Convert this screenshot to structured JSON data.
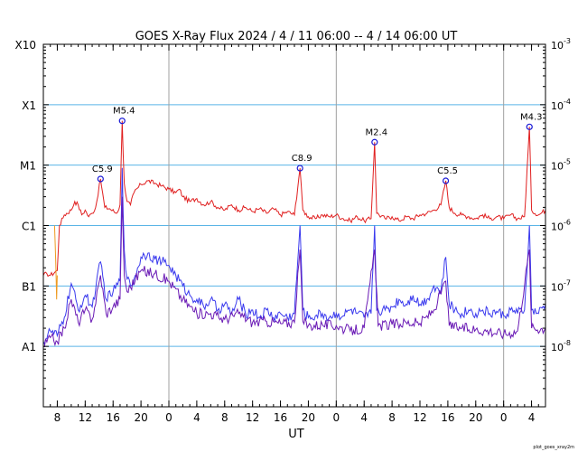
{
  "chart_data": {
    "type": "line",
    "title": "GOES X-Ray Flux   2024 /  4 / 11   06:00 --  4 / 14   06:00   UT",
    "xlabel": "UT",
    "footer": "plot_goes_xray2m",
    "y_scale": "log",
    "ylim": [
      1e-09,
      0.001
    ],
    "x_range_hours": [
      0,
      72
    ],
    "x_ticks": [
      {
        "h": 2,
        "label": "8"
      },
      {
        "h": 6,
        "label": "12"
      },
      {
        "h": 10,
        "label": "16"
      },
      {
        "h": 14,
        "label": "20"
      },
      {
        "h": 18,
        "label": "0"
      },
      {
        "h": 22,
        "label": "4"
      },
      {
        "h": 26,
        "label": "8"
      },
      {
        "h": 30,
        "label": "12"
      },
      {
        "h": 34,
        "label": "16"
      },
      {
        "h": 38,
        "label": "20"
      },
      {
        "h": 42,
        "label": "0"
      },
      {
        "h": 46,
        "label": "4"
      },
      {
        "h": 50,
        "label": "8"
      },
      {
        "h": 54,
        "label": "12"
      },
      {
        "h": 58,
        "label": "16"
      },
      {
        "h": 62,
        "label": "20"
      },
      {
        "h": 66,
        "label": "0"
      },
      {
        "h": 70,
        "label": "4"
      }
    ],
    "day_boundaries_h": [
      18,
      42,
      66
    ],
    "left_axis_labels": [
      {
        "flux": 0.001,
        "label": "X10"
      },
      {
        "flux": 0.0001,
        "label": "X1"
      },
      {
        "flux": 1e-05,
        "label": "M1"
      },
      {
        "flux": 1e-06,
        "label": "C1"
      },
      {
        "flux": 1e-07,
        "label": "B1"
      },
      {
        "flux": 1e-08,
        "label": "A1"
      }
    ],
    "right_axis_labels": [
      {
        "flux": 0.001,
        "base": "10",
        "exp": "-3"
      },
      {
        "flux": 0.0001,
        "base": "10",
        "exp": "-4"
      },
      {
        "flux": 1e-05,
        "base": "10",
        "exp": "-5"
      },
      {
        "flux": 1e-06,
        "base": "10",
        "exp": "-6"
      },
      {
        "flux": 1e-07,
        "base": "10",
        "exp": "-7"
      },
      {
        "flux": 1e-08,
        "base": "10",
        "exp": "-8"
      }
    ],
    "flares": [
      {
        "label": "C5.9",
        "h": 8.2,
        "flux": 5.9e-06
      },
      {
        "label": "M5.4",
        "h": 11.3,
        "flux": 5.4e-05
      },
      {
        "label": "C8.9",
        "h": 36.8,
        "flux": 8.9e-06
      },
      {
        "label": "M2.4",
        "h": 47.5,
        "flux": 2.4e-05
      },
      {
        "label": "C5.5",
        "h": 57.7,
        "flux": 5.5e-06
      },
      {
        "label": "M4.3",
        "h": 69.7,
        "flux": 4.3e-05
      }
    ],
    "series": [
      {
        "color": "#e02020",
        "points": [
          [
            0.0,
            1.5e-07
          ],
          [
            0.5,
            1.6e-07
          ],
          [
            1.0,
            1.5e-07
          ],
          [
            2.0,
            1.8e-07
          ],
          [
            2.3,
            1e-06
          ],
          [
            3.0,
            1.5e-06
          ],
          [
            4.0,
            1.8e-06
          ],
          [
            4.5,
            2.5e-06
          ],
          [
            5.0,
            2.2e-06
          ],
          [
            5.5,
            1.5e-06
          ],
          [
            6.0,
            1.8e-06
          ],
          [
            6.5,
            1.4e-06
          ],
          [
            7.0,
            1.6e-06
          ],
          [
            7.5,
            2e-06
          ],
          [
            8.2,
            5.9e-06
          ],
          [
            8.8,
            2e-06
          ],
          [
            9.5,
            1.9e-06
          ],
          [
            10.5,
            1.6e-06
          ],
          [
            11.0,
            2.2e-06
          ],
          [
            11.3,
            5.4e-05
          ],
          [
            11.6,
            5e-06
          ],
          [
            12.0,
            2.5e-06
          ],
          [
            12.5,
            2.2e-06
          ],
          [
            13.0,
            3.5e-06
          ],
          [
            14.0,
            4.8e-06
          ],
          [
            15.0,
            5.5e-06
          ],
          [
            16.0,
            5e-06
          ],
          [
            17.0,
            4.5e-06
          ],
          [
            18.0,
            4e-06
          ],
          [
            19.0,
            3.5e-06
          ],
          [
            19.5,
            4e-06
          ],
          [
            20.0,
            3e-06
          ],
          [
            21.0,
            2.5e-06
          ],
          [
            22.0,
            2.8e-06
          ],
          [
            23.0,
            2.2e-06
          ],
          [
            24.0,
            2.5e-06
          ],
          [
            25.0,
            2e-06
          ],
          [
            26.0,
            1.8e-06
          ],
          [
            27.0,
            2.2e-06
          ],
          [
            28.0,
            1.8e-06
          ],
          [
            29.0,
            2e-06
          ],
          [
            30.0,
            1.7e-06
          ],
          [
            31.0,
            1.9e-06
          ],
          [
            32.0,
            1.6e-06
          ],
          [
            33.0,
            1.9e-06
          ],
          [
            34.0,
            1.5e-06
          ],
          [
            35.0,
            1.7e-06
          ],
          [
            36.0,
            1.5e-06
          ],
          [
            36.8,
            8.9e-06
          ],
          [
            37.2,
            1.8e-06
          ],
          [
            38.0,
            1.4e-06
          ],
          [
            39.0,
            1.3e-06
          ],
          [
            40.0,
            1.5e-06
          ],
          [
            41.0,
            1.4e-06
          ],
          [
            42.0,
            1.5e-06
          ],
          [
            43.0,
            1.3e-06
          ],
          [
            44.0,
            1.2e-06
          ],
          [
            45.0,
            1.4e-06
          ],
          [
            46.0,
            1.2e-06
          ],
          [
            47.0,
            1.3e-06
          ],
          [
            47.5,
            2.4e-05
          ],
          [
            47.8,
            1.6e-06
          ],
          [
            49.0,
            1.3e-06
          ],
          [
            50.0,
            1.4e-06
          ],
          [
            51.0,
            1.2e-06
          ],
          [
            52.0,
            1.4e-06
          ],
          [
            53.0,
            1.3e-06
          ],
          [
            54.0,
            1.5e-06
          ],
          [
            55.0,
            1.6e-06
          ],
          [
            56.0,
            1.8e-06
          ],
          [
            57.0,
            2.2e-06
          ],
          [
            57.7,
            5.5e-06
          ],
          [
            58.2,
            2e-06
          ],
          [
            59.0,
            1.6e-06
          ],
          [
            60.0,
            1.5e-06
          ],
          [
            61.0,
            1.4e-06
          ],
          [
            62.0,
            1.3e-06
          ],
          [
            63.0,
            1.5e-06
          ],
          [
            64.0,
            1.3e-06
          ],
          [
            65.0,
            1.4e-06
          ],
          [
            66.0,
            1.3e-06
          ],
          [
            67.0,
            1.5e-06
          ],
          [
            68.0,
            1.3e-06
          ],
          [
            69.0,
            1.4e-06
          ],
          [
            69.7,
            4.3e-05
          ],
          [
            70.0,
            1.8e-06
          ],
          [
            71.0,
            1.5e-06
          ],
          [
            72.0,
            1.8e-06
          ]
        ]
      },
      {
        "color": "#3a3aee",
        "points": [
          [
            0.0,
            1.2e-08
          ],
          [
            1.0,
            1.8e-08
          ],
          [
            2.0,
            1.5e-08
          ],
          [
            3.0,
            3e-08
          ],
          [
            4.0,
            1.1e-07
          ],
          [
            5.0,
            4e-08
          ],
          [
            6.0,
            7e-08
          ],
          [
            7.0,
            4.5e-08
          ],
          [
            8.2,
            2.5e-07
          ],
          [
            9.0,
            6e-08
          ],
          [
            10.0,
            8e-08
          ],
          [
            11.0,
            1.2e-07
          ],
          [
            11.3,
            9e-06
          ],
          [
            11.6,
            4e-07
          ],
          [
            12.0,
            1.3e-07
          ],
          [
            12.5,
            1e-07
          ],
          [
            13.0,
            1.3e-07
          ],
          [
            14.0,
            3e-07
          ],
          [
            15.0,
            3.5e-07
          ],
          [
            16.0,
            2.8e-07
          ],
          [
            17.0,
            2.5e-07
          ],
          [
            18.0,
            2.2e-07
          ],
          [
            19.0,
            1.5e-07
          ],
          [
            20.0,
            1e-07
          ],
          [
            21.0,
            7e-08
          ],
          [
            22.0,
            6e-08
          ],
          [
            23.0,
            4.5e-08
          ],
          [
            24.0,
            6e-08
          ],
          [
            25.0,
            4e-08
          ],
          [
            26.0,
            5e-08
          ],
          [
            27.0,
            3.5e-08
          ],
          [
            28.0,
            6e-08
          ],
          [
            29.0,
            3.5e-08
          ],
          [
            30.0,
            4e-08
          ],
          [
            31.0,
            3e-08
          ],
          [
            32.0,
            4e-08
          ],
          [
            33.0,
            3e-08
          ],
          [
            34.0,
            3.5e-08
          ],
          [
            35.0,
            3e-08
          ],
          [
            36.0,
            3.5e-08
          ],
          [
            36.8,
            1e-06
          ],
          [
            37.2,
            4e-08
          ],
          [
            38.0,
            3e-08
          ],
          [
            39.0,
            3.2e-08
          ],
          [
            40.0,
            3.5e-08
          ],
          [
            41.0,
            3e-08
          ],
          [
            42.0,
            3.5e-08
          ],
          [
            43.0,
            3.2e-08
          ],
          [
            44.0,
            4e-08
          ],
          [
            45.0,
            3.5e-08
          ],
          [
            46.0,
            3e-08
          ],
          [
            47.0,
            3.5e-08
          ],
          [
            47.5,
            1e-06
          ],
          [
            47.8,
            4e-08
          ],
          [
            49.0,
            4e-08
          ],
          [
            50.0,
            4.5e-08
          ],
          [
            51.0,
            6e-08
          ],
          [
            52.0,
            5e-08
          ],
          [
            53.0,
            7e-08
          ],
          [
            54.0,
            5e-08
          ],
          [
            55.0,
            6e-08
          ],
          [
            56.0,
            1e-07
          ],
          [
            57.0,
            8e-08
          ],
          [
            57.7,
            3e-07
          ],
          [
            58.2,
            5e-08
          ],
          [
            59.0,
            4e-08
          ],
          [
            60.0,
            3.5e-08
          ],
          [
            61.0,
            4e-08
          ],
          [
            62.0,
            3.5e-08
          ],
          [
            63.0,
            4e-08
          ],
          [
            64.0,
            3.5e-08
          ],
          [
            65.0,
            3.8e-08
          ],
          [
            66.0,
            3.2e-08
          ],
          [
            67.0,
            4e-08
          ],
          [
            68.0,
            3.5e-08
          ],
          [
            69.0,
            4e-08
          ],
          [
            69.7,
            1e-06
          ],
          [
            70.0,
            4e-08
          ],
          [
            71.0,
            3.5e-08
          ],
          [
            72.0,
            5e-08
          ]
        ]
      },
      {
        "color": "#6a1ab5",
        "points": [
          [
            0.0,
            1e-08
          ],
          [
            1.0,
            1.4e-08
          ],
          [
            2.0,
            1.2e-08
          ],
          [
            3.0,
            2e-08
          ],
          [
            4.0,
            6e-08
          ],
          [
            5.0,
            2.5e-08
          ],
          [
            6.0,
            4e-08
          ],
          [
            7.0,
            2.8e-08
          ],
          [
            8.2,
            1.5e-07
          ],
          [
            9.0,
            3.5e-08
          ],
          [
            10.0,
            4.5e-08
          ],
          [
            11.0,
            6e-08
          ],
          [
            11.3,
            3e-06
          ],
          [
            11.6,
            1.5e-07
          ],
          [
            12.0,
            8e-08
          ],
          [
            14.0,
            1.8e-07
          ],
          [
            16.0,
            1.6e-07
          ],
          [
            18.0,
            1.2e-07
          ],
          [
            20.0,
            6e-08
          ],
          [
            22.0,
            3.5e-08
          ],
          [
            24.0,
            3.5e-08
          ],
          [
            26.0,
            2.8e-08
          ],
          [
            28.0,
            3.5e-08
          ],
          [
            30.0,
            2.5e-08
          ],
          [
            32.0,
            2.6e-08
          ],
          [
            34.0,
            2.4e-08
          ],
          [
            36.0,
            2.5e-08
          ],
          [
            36.8,
            4e-07
          ],
          [
            37.2,
            2.6e-08
          ],
          [
            38.0,
            2.2e-08
          ],
          [
            40.0,
            2.3e-08
          ],
          [
            42.0,
            2.2e-08
          ],
          [
            44.0,
            1.8e-08
          ],
          [
            46.0,
            2e-08
          ],
          [
            47.5,
            4e-07
          ],
          [
            48.0,
            2.2e-08
          ],
          [
            50.0,
            2.3e-08
          ],
          [
            52.0,
            2.5e-08
          ],
          [
            54.0,
            2.4e-08
          ],
          [
            56.0,
            4e-08
          ],
          [
            57.7,
            1.2e-07
          ],
          [
            58.2,
            2.2e-08
          ],
          [
            60.0,
            2e-08
          ],
          [
            62.0,
            1.9e-08
          ],
          [
            64.0,
            1.8e-08
          ],
          [
            66.0,
            1.6e-08
          ],
          [
            68.0,
            1.8e-08
          ],
          [
            69.7,
            4e-07
          ],
          [
            70.0,
            2e-08
          ],
          [
            72.0,
            2e-08
          ]
        ]
      },
      {
        "color": "#ee9a20",
        "points": [
          [
            1.6,
            1e-06
          ],
          [
            1.7,
            5e-07
          ],
          [
            1.8,
            2e-07
          ],
          [
            1.9,
            6e-08
          ],
          [
            2.0,
            1.5e-07
          ]
        ]
      }
    ]
  }
}
